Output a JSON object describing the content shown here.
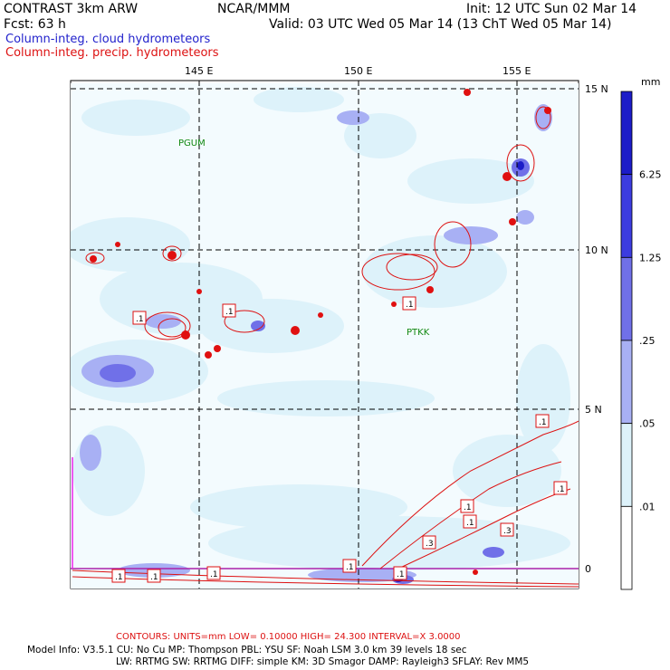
{
  "header": {
    "left1": "CONTRAST  3km ARW",
    "center1": "NCAR/MMM",
    "right1": "Init: 12 UTC Sun 02 Mar 14",
    "left2": "Fcst:   63 h",
    "right2": "Valid: 03 UTC Wed 05 Mar 14 (13 ChT Wed 05 Mar 14)",
    "legend_blue": "Column-integ. cloud hydrometeors",
    "legend_red": "Column-integ. precip. hydrometeors"
  },
  "axes": {
    "lon_labels": [
      "145 E",
      "150 E",
      "155 E"
    ],
    "lat_labels": [
      "15 N",
      "10 N",
      "5 N",
      "0"
    ]
  },
  "stations": [
    "PGUM",
    "PTKK"
  ],
  "colorbar": {
    "unit": "mm",
    "labels": [
      "6.25",
      "1.25",
      ".25",
      ".05",
      ".01"
    ],
    "colors": [
      "#1c1cc8",
      "#3c3ce0",
      "#7070e8",
      "#a8b0f4",
      "#ddf2fa",
      "#ffffff"
    ]
  },
  "contour_labels": [
    ".1",
    ".1",
    ".1",
    ".1",
    ".1",
    ".1",
    ".3",
    ".3",
    ".1",
    ".1",
    ".1",
    ".1",
    ".1",
    ".1"
  ],
  "footer": {
    "contours": "CONTOURS:  UNITS=mm  LOW= 0.10000     HIGH= 24.300     INTERVAL=X  3.0000",
    "model1": "Model Info: V3.5.1    CU: No Cu      MP: Thompson     PBL: YSU       SF: Noah LSM     3.0 km   39 levels   18 sec",
    "model2": "LW: RRTMG    SW: RRTMG   DIFF: simple KM: 3D Smagor DAMP: Rayleigh3   SFLAY: Rev MM5"
  }
}
